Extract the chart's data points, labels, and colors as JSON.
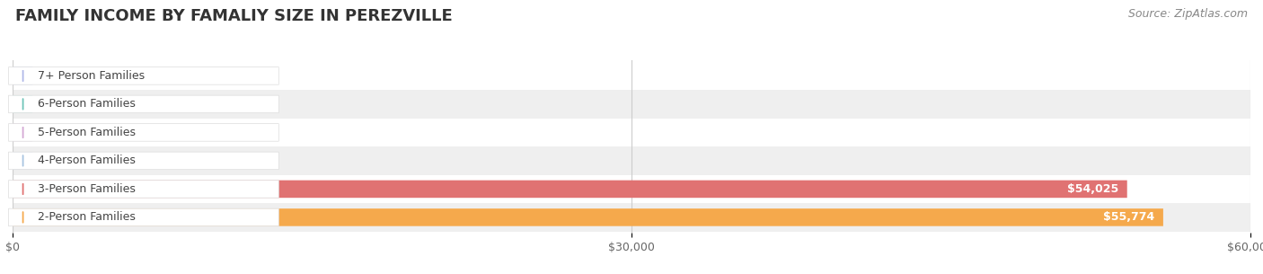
{
  "title": "FAMILY INCOME BY FAMALIY SIZE IN PEREZVILLE",
  "source": "Source: ZipAtlas.com",
  "categories": [
    "2-Person Families",
    "3-Person Families",
    "4-Person Families",
    "5-Person Families",
    "6-Person Families",
    "7+ Person Families"
  ],
  "values": [
    55774,
    54025,
    0,
    0,
    0,
    0
  ],
  "bar_colors": [
    "#F5A94C",
    "#E07272",
    "#A8C4E0",
    "#D4A8D4",
    "#6EC4B8",
    "#B0B8E8"
  ],
  "xlim": [
    0,
    60000
  ],
  "xticks": [
    0,
    30000,
    60000
  ],
  "xtick_labels": [
    "$0",
    "$30,000",
    "$60,000"
  ],
  "bar_height": 0.62,
  "background_color": "#ffffff",
  "row_bg_colors": [
    "#efefef",
    "#ffffff"
  ],
  "title_fontsize": 13,
  "source_fontsize": 9,
  "label_fontsize": 9,
  "value_fontsize": 9
}
